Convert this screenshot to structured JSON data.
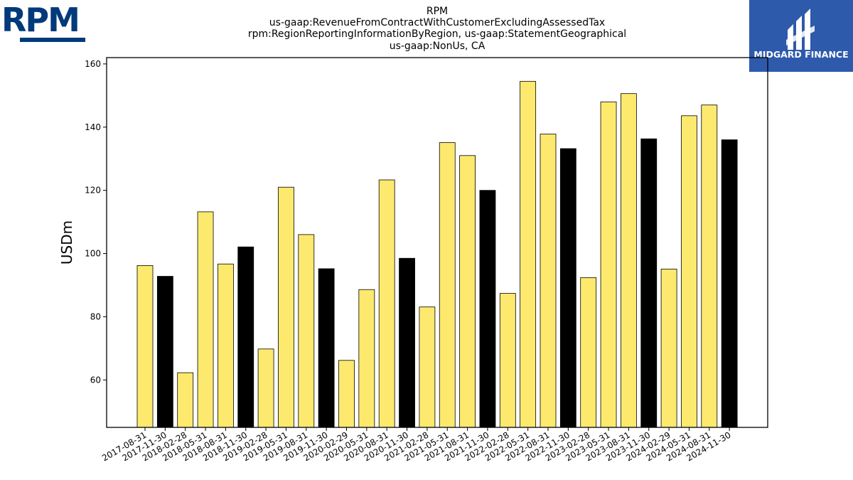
{
  "logos": {
    "left_text": "RPM",
    "right_text": "MIDGARD FINANCE",
    "left_color": "#003a7a",
    "right_bg": "#2e5aac"
  },
  "chart_data": {
    "type": "bar",
    "title": [
      "RPM",
      "us-gaap:RevenueFromContractWithCustomerExcludingAssessedTax",
      "rpm:RegionReportingInformationByRegion, us-gaap:StatementGeographical",
      "us-gaap:NonUs, CA"
    ],
    "xlabel": "",
    "ylabel": "USDm",
    "ylim": [
      45,
      162
    ],
    "yticks": [
      60,
      80,
      100,
      120,
      140,
      160
    ],
    "grid": false,
    "colors": {
      "yellow": "#fde96e",
      "black": "#000000"
    },
    "categories": [
      "2017-08-31",
      "2017-11-30",
      "2018-02-28",
      "2018-05-31",
      "2018-08-31",
      "2018-11-30",
      "2019-02-28",
      "2019-05-31",
      "2019-08-31",
      "2019-11-30",
      "2020-02-29",
      "2020-05-31",
      "2020-08-31",
      "2020-11-30",
      "2021-02-28",
      "2021-05-31",
      "2021-08-31",
      "2021-11-30",
      "2022-02-28",
      "2022-05-31",
      "2022-08-31",
      "2022-11-30",
      "2023-02-28",
      "2023-05-31",
      "2023-08-31",
      "2023-11-30",
      "2024-02-29",
      "2024-05-31",
      "2024-08-31",
      "2024-11-30"
    ],
    "values": [
      96.2,
      92.8,
      62.3,
      113.2,
      96.7,
      102.1,
      69.8,
      121.0,
      106.0,
      95.2,
      66.2,
      88.6,
      123.3,
      98.5,
      83.1,
      135.1,
      131.0,
      120.0,
      87.4,
      154.5,
      137.8,
      133.2,
      92.4,
      148.0,
      150.6,
      136.3,
      95.1,
      143.6,
      147.0,
      136.0
    ],
    "bar_colors": [
      "yellow",
      "black",
      "yellow",
      "yellow",
      "yellow",
      "black",
      "yellow",
      "yellow",
      "yellow",
      "black",
      "yellow",
      "yellow",
      "yellow",
      "black",
      "yellow",
      "yellow",
      "yellow",
      "black",
      "yellow",
      "yellow",
      "yellow",
      "black",
      "yellow",
      "yellow",
      "yellow",
      "black",
      "yellow",
      "yellow",
      "yellow",
      "black"
    ]
  }
}
